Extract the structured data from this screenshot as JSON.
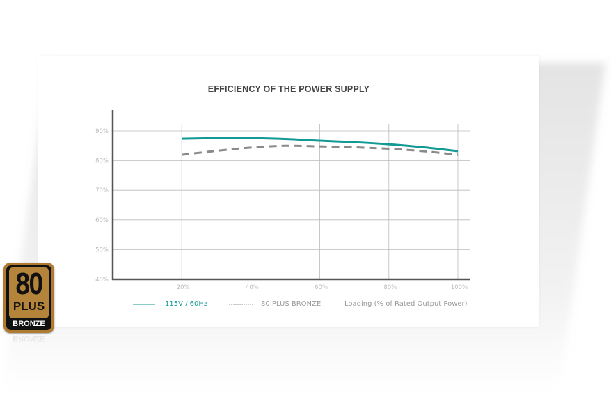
{
  "chart_data": {
    "type": "line",
    "title": "EFFICIENCY OF THE POWER SUPPLY",
    "xlabel": "Loading (% of Rated Output Power)",
    "ylabel": "",
    "x": [
      20,
      30,
      40,
      50,
      60,
      70,
      80,
      90,
      100
    ],
    "xticks": [
      "20%",
      "40%",
      "60%",
      "80%",
      "100%"
    ],
    "yticks": [
      "90%",
      "80%",
      "70%",
      "60%",
      "50%",
      "40%"
    ],
    "xlim": [
      0,
      100
    ],
    "ylim": [
      40,
      90
    ],
    "grid": true,
    "legend_position": "bottom",
    "series": [
      {
        "name": "115V / 60Hz",
        "color": "#139a94",
        "style": "solid",
        "values": [
          87.4,
          87.6,
          87.6,
          87.3,
          86.7,
          86.2,
          85.5,
          84.5,
          83.2
        ]
      },
      {
        "name": "80 PLUS BRONZE",
        "color": "#8a8a8a",
        "style": "dashed",
        "values": [
          82.0,
          83.3,
          84.4,
          85.0,
          84.8,
          84.5,
          84.0,
          83.2,
          82.0
        ]
      }
    ]
  },
  "badge": {
    "number": "80",
    "plus": "PLUS",
    "tier": "BRONZE"
  }
}
